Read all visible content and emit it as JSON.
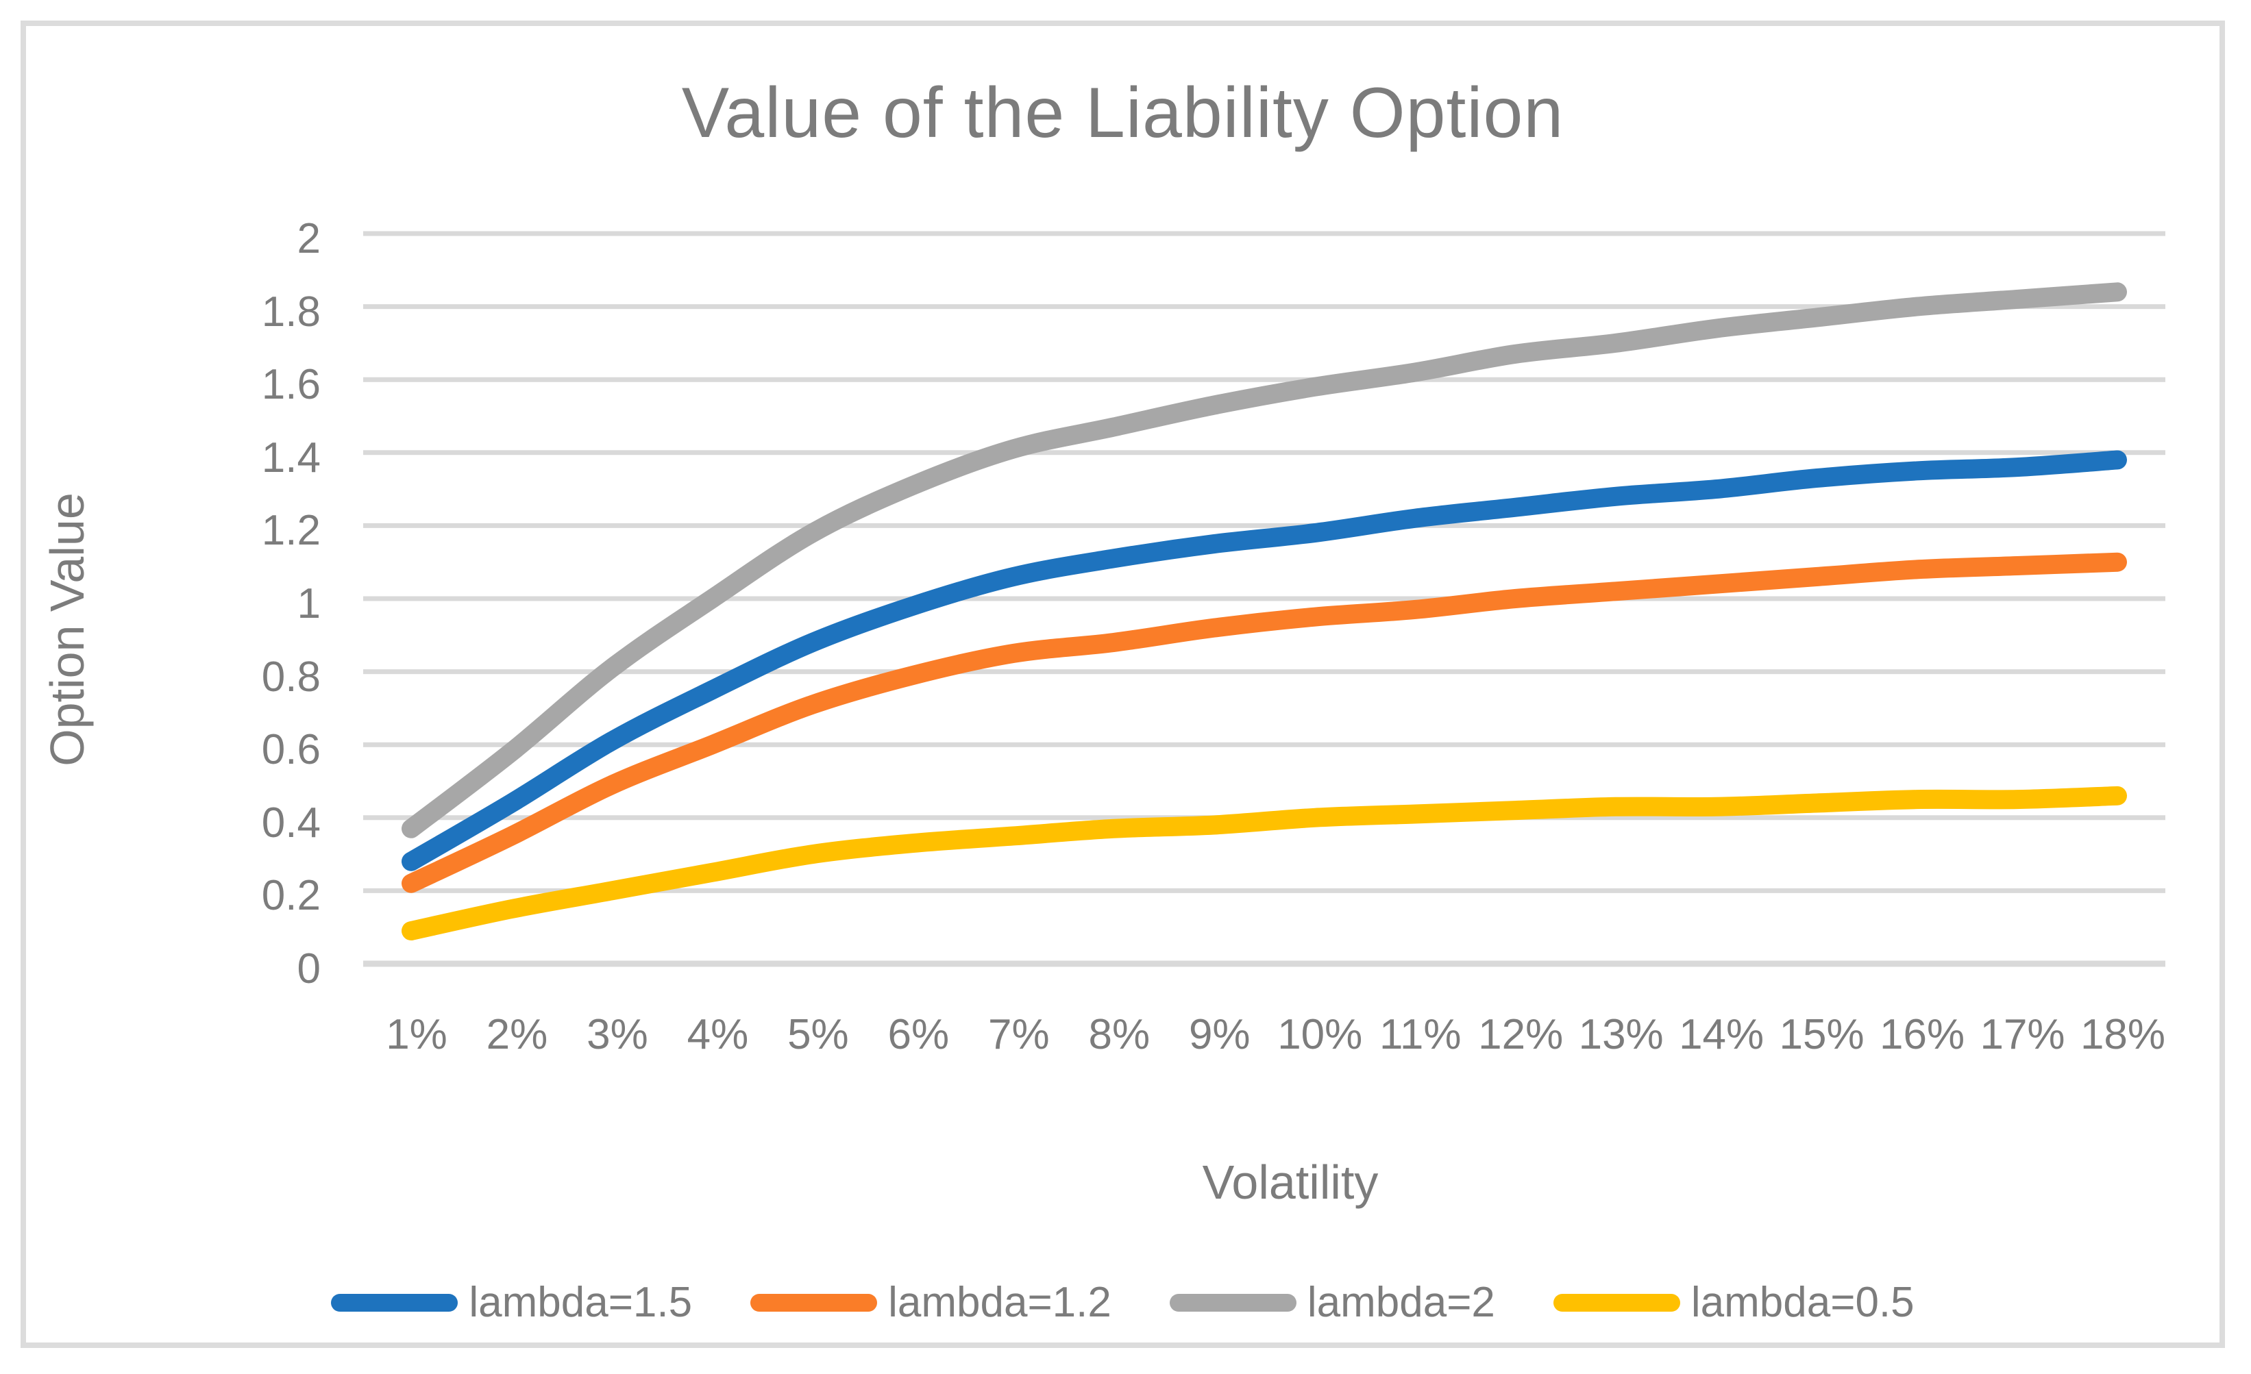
{
  "title": "Value of the Liability Option",
  "chart_data": {
    "type": "line",
    "title": "Value of the Liability Option",
    "xlabel": "Volatility",
    "ylabel": "Option Value",
    "categories": [
      "1%",
      "2%",
      "3%",
      "4%",
      "5%",
      "6%",
      "7%",
      "8%",
      "9%",
      "10%",
      "11%",
      "12%",
      "13%",
      "14%",
      "15%",
      "16%",
      "17%",
      "18%"
    ],
    "ylim": [
      0,
      2
    ],
    "ytick_values": [
      0,
      0.2,
      0.4,
      0.6,
      0.8,
      1,
      1.2,
      1.4,
      1.6,
      1.8,
      2
    ],
    "ytick_labels": [
      "0",
      "0.2",
      "0.4",
      "0.6",
      "0.8",
      "1",
      "1.2",
      "1.4",
      "1.6",
      "1.8",
      "2"
    ],
    "grid": true,
    "legend_position": "bottom",
    "series": [
      {
        "name": "lambda=1.5",
        "color": "#1E73BE",
        "values": [
          0.28,
          0.44,
          0.61,
          0.75,
          0.88,
          0.98,
          1.06,
          1.11,
          1.15,
          1.18,
          1.22,
          1.25,
          1.28,
          1.3,
          1.33,
          1.35,
          1.36,
          1.38
        ]
      },
      {
        "name": "lambda=1.2",
        "color": "#FA7D28",
        "values": [
          0.22,
          0.35,
          0.49,
          0.6,
          0.71,
          0.79,
          0.85,
          0.88,
          0.92,
          0.95,
          0.97,
          1.0,
          1.02,
          1.04,
          1.06,
          1.08,
          1.09,
          1.1
        ]
      },
      {
        "name": "lambda=2",
        "color": "#A7A7A7",
        "values": [
          0.37,
          0.58,
          0.81,
          1.0,
          1.18,
          1.31,
          1.41,
          1.47,
          1.53,
          1.58,
          1.62,
          1.67,
          1.7,
          1.74,
          1.77,
          1.8,
          1.82,
          1.84
        ]
      },
      {
        "name": "lambda=0.5",
        "color": "#FFC000",
        "values": [
          0.09,
          0.15,
          0.2,
          0.25,
          0.3,
          0.33,
          0.35,
          0.37,
          0.38,
          0.4,
          0.41,
          0.42,
          0.43,
          0.43,
          0.44,
          0.45,
          0.45,
          0.46
        ]
      }
    ],
    "gridline_color": "#D9D9D9",
    "text_color": "#7C7C7C"
  }
}
